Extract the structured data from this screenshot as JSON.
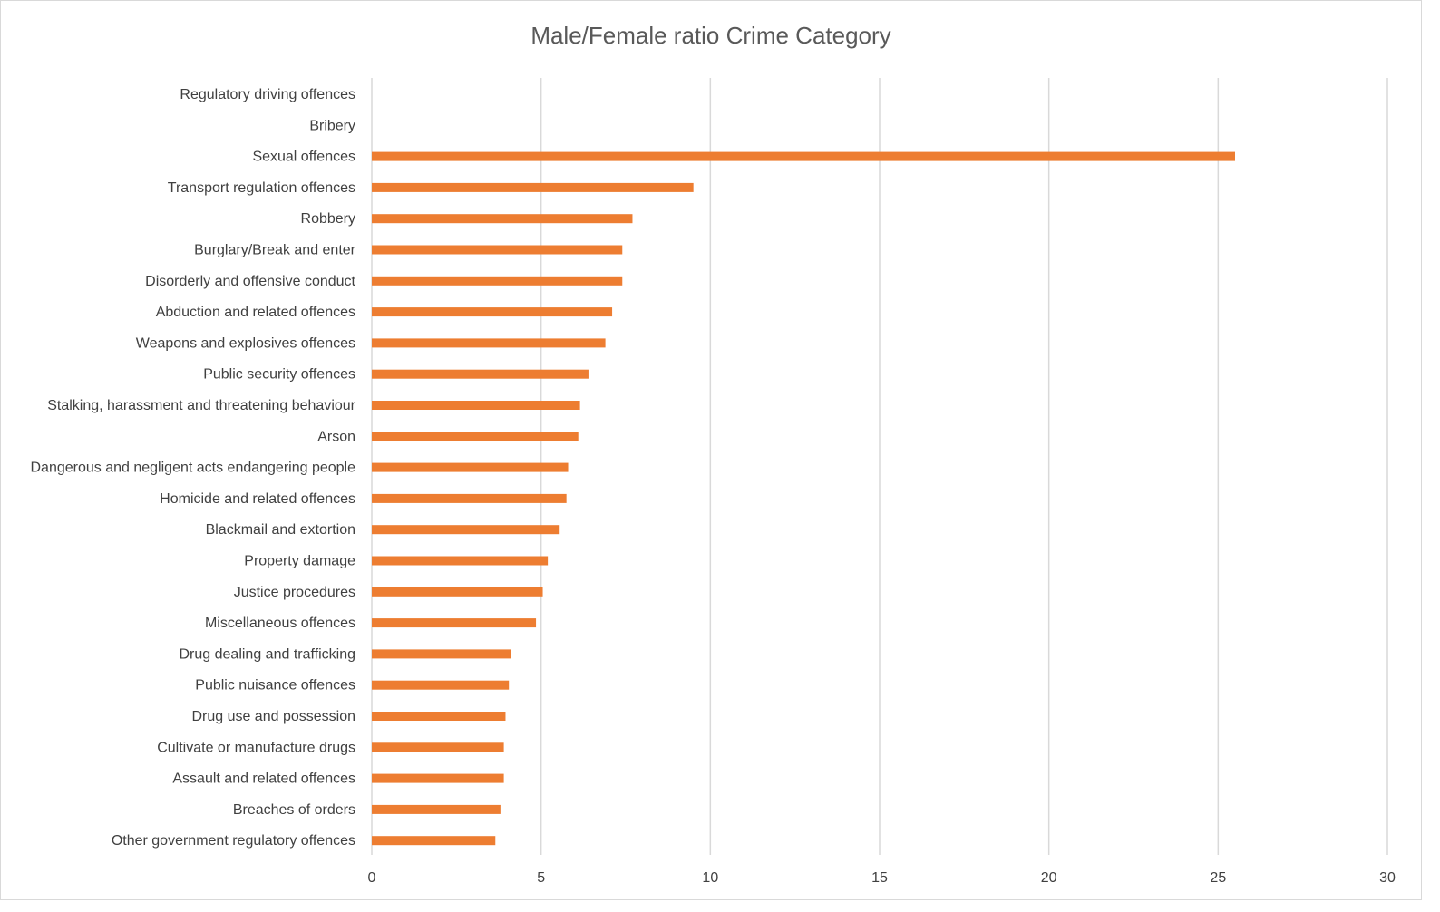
{
  "chart_data": {
    "type": "bar",
    "orientation": "horizontal",
    "title": "Male/Female ratio Crime Category",
    "xlabel": "",
    "ylabel": "",
    "xlim": [
      0,
      30
    ],
    "xticks": [
      0,
      5,
      10,
      15,
      20,
      25,
      30
    ],
    "grid": true,
    "legend": "none",
    "bar_color": "#ED7D31",
    "categories": [
      "Regulatory driving offences",
      "Bribery",
      "Sexual offences",
      "Transport regulation offences",
      "Robbery",
      "Burglary/Break and enter",
      "Disorderly and offensive conduct",
      "Abduction and related offences",
      "Weapons and explosives offences",
      "Public security offences",
      "Stalking, harassment and threatening behaviour",
      "Arson",
      "Dangerous and negligent acts endangering people",
      "Homicide and related offences",
      "Blackmail and extortion",
      "Property damage",
      "Justice procedures",
      "Miscellaneous offences",
      "Drug dealing and trafficking",
      "Public nuisance offences",
      "Drug use and possession",
      "Cultivate or manufacture drugs",
      "Assault and related offences",
      "Breaches of orders",
      "Other government regulatory offences"
    ],
    "values": [
      0,
      0,
      25.5,
      9.5,
      7.7,
      7.4,
      7.4,
      7.1,
      6.9,
      6.4,
      6.15,
      6.1,
      5.8,
      5.75,
      5.55,
      5.2,
      5.05,
      4.85,
      4.1,
      4.05,
      3.95,
      3.9,
      3.9,
      3.8,
      3.65
    ]
  }
}
